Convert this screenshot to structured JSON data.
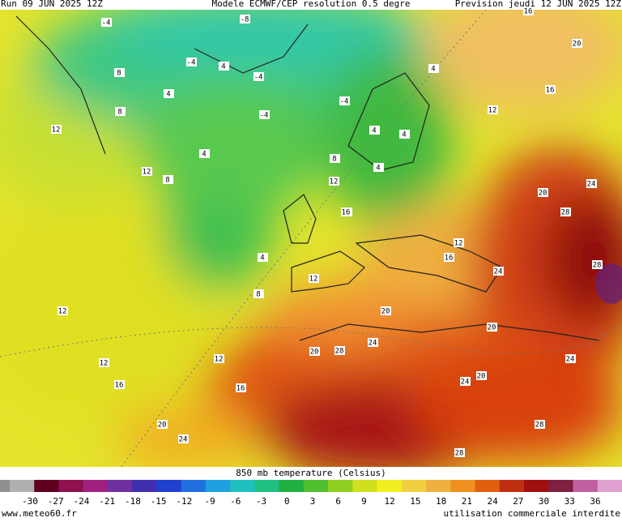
{
  "header": {
    "run": "Run 09 JUN 2025 12Z",
    "model": "Modele ECMWF/CEP resolution 0.5 degre",
    "forecast": "Prevision jeudi 12 JUN 2025 12Z"
  },
  "colorbar": {
    "title": "850 mb temperature (Celsius)",
    "ticks": [
      -30,
      -27,
      -24,
      -21,
      -18,
      -15,
      -12,
      -9,
      -6,
      -3,
      0,
      3,
      6,
      9,
      12,
      15,
      18,
      21,
      24,
      27,
      30,
      33,
      36
    ]
  },
  "contour_labels": [
    -4,
    -8,
    -4,
    -4,
    -4,
    -4,
    8,
    4,
    4,
    8,
    12,
    12,
    4,
    8,
    4,
    12,
    4,
    16,
    4,
    8,
    12,
    16,
    12,
    16,
    20,
    24,
    24,
    28,
    28,
    12,
    20,
    20,
    20,
    24,
    24,
    28,
    20,
    12,
    12,
    16,
    16,
    20,
    24,
    28,
    28,
    16,
    20,
    12,
    8,
    4,
    4,
    16,
    24
  ],
  "footer": {
    "site": "www.meteo60.fr",
    "notice": "utilisation commerciale interdite"
  }
}
